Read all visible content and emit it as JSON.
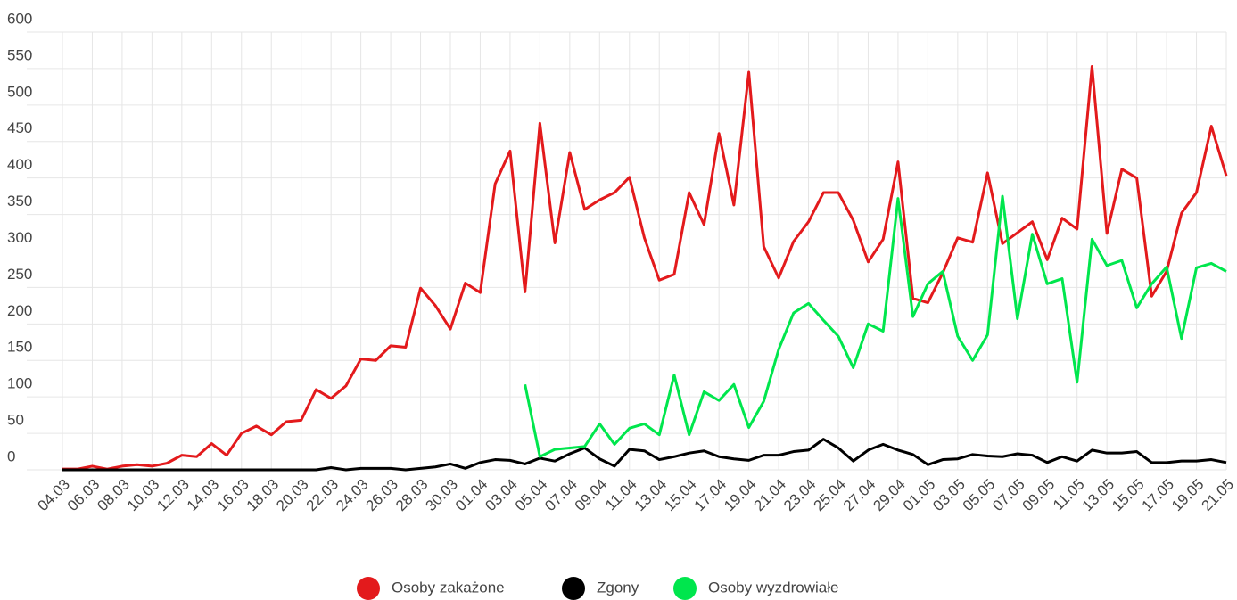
{
  "chart_data": {
    "type": "line",
    "categories": [
      "04.03",
      null,
      "06.03",
      null,
      "08.03",
      null,
      "10.03",
      null,
      "12.03",
      null,
      "14.03",
      null,
      "16.03",
      null,
      "18.03",
      null,
      "20.03",
      null,
      "22.03",
      null,
      "24.03",
      null,
      "26.03",
      null,
      "28.03",
      null,
      "30.03",
      null,
      "01.04",
      null,
      "03.04",
      null,
      "05.04",
      null,
      "07.04",
      null,
      "09.04",
      null,
      "11.04",
      null,
      "13.04",
      null,
      "15.04",
      null,
      "17.04",
      null,
      "19.04",
      null,
      "21.04",
      null,
      "23.04",
      null,
      "25.04",
      null,
      "27.04",
      null,
      "29.04",
      null,
      "01.05",
      null,
      "03.05",
      null,
      "05.05",
      null,
      "07.05",
      null,
      "09.05",
      null,
      "11.05",
      null,
      "13.05",
      null,
      "15.05",
      null,
      "17.05",
      null,
      "19.05",
      null,
      "21.05"
    ],
    "series": [
      {
        "name": "Osoby zakażone",
        "color": "#e31a1c",
        "values": [
          1,
          1,
          5,
          1,
          5,
          7,
          5,
          9,
          20,
          18,
          36,
          20,
          50,
          60,
          48,
          66,
          68,
          110,
          98,
          115,
          152,
          150,
          170,
          168,
          249,
          225,
          193,
          256,
          243,
          392,
          437,
          244,
          475,
          311,
          435,
          357,
          370,
          380,
          401,
          318,
          260,
          268,
          380,
          336,
          461,
          363,
          545,
          306,
          263,
          313,
          340,
          380,
          380,
          342,
          285,
          316,
          422,
          235,
          229,
          270,
          318,
          312,
          407,
          310,
          325,
          340,
          288,
          345,
          330,
          553,
          324,
          412,
          400,
          238,
          272,
          352,
          380,
          471,
          403
        ]
      },
      {
        "name": "Zgony",
        "color": "#000000",
        "values": [
          0,
          0,
          0,
          0,
          0,
          0,
          0,
          0,
          0,
          0,
          0,
          0,
          0,
          0,
          0,
          0,
          0,
          0,
          3,
          0,
          2,
          2,
          2,
          0,
          2,
          4,
          8,
          2,
          10,
          14,
          13,
          8,
          16,
          12,
          22,
          30,
          15,
          5,
          28,
          26,
          14,
          18,
          23,
          26,
          18,
          15,
          13,
          20,
          20,
          25,
          27,
          42,
          30,
          12,
          27,
          35,
          27,
          21,
          7,
          14,
          15,
          21,
          19,
          18,
          22,
          20,
          10,
          18,
          12,
          27,
          23,
          23,
          25,
          10,
          10,
          12,
          12,
          14,
          10
        ]
      },
      {
        "name": "Osoby wyzdrowiałe",
        "color": "#00e64d",
        "values": [
          null,
          null,
          null,
          null,
          null,
          null,
          null,
          null,
          null,
          null,
          null,
          null,
          null,
          null,
          null,
          null,
          null,
          null,
          null,
          null,
          null,
          null,
          null,
          null,
          null,
          null,
          null,
          null,
          null,
          null,
          null,
          117,
          18,
          28,
          30,
          32,
          63,
          35,
          57,
          63,
          48,
          130,
          48,
          107,
          95,
          117,
          58,
          94,
          165,
          215,
          228,
          205,
          183,
          140,
          200,
          190,
          372,
          210,
          255,
          272,
          183,
          150,
          185,
          375,
          207,
          323,
          255,
          262,
          120,
          316,
          280,
          287,
          222,
          255,
          278,
          180,
          277,
          283,
          272
        ]
      }
    ],
    "ylim": [
      0,
      600
    ],
    "yticks": [
      0,
      50,
      100,
      150,
      200,
      250,
      300,
      350,
      400,
      450,
      500,
      550,
      600
    ],
    "grid": true,
    "legend": "bottom"
  }
}
